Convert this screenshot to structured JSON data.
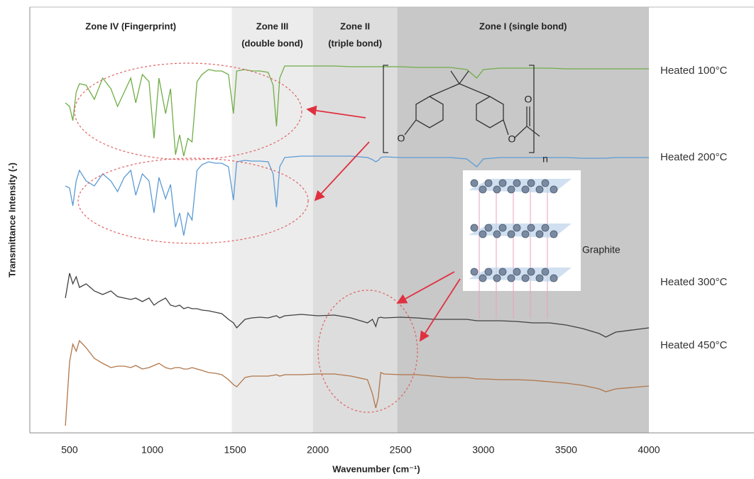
{
  "chart_data": {
    "type": "line",
    "xlabel": "Wavenumber (cm⁻¹)",
    "ylabel": "Transmittance Intensity (-)",
    "xlim": [
      260,
      4635
    ],
    "xticks": [
      500,
      1000,
      1500,
      2000,
      2500,
      3000,
      3500,
      4000
    ],
    "ylim": [
      0,
      600
    ],
    "zones": [
      {
        "label": [
          "Zone IV (Fingerprint)"
        ],
        "start": 260,
        "end": 1480,
        "color": "#ffffff"
      },
      {
        "label": [
          "Zone III",
          "(double bond)"
        ],
        "start": 1480,
        "end": 1970,
        "color": "#ececec"
      },
      {
        "label": [
          "Zone II",
          "(triple bond)"
        ],
        "start": 1970,
        "end": 2480,
        "color": "#dddddd"
      },
      {
        "label": [
          "Zone I (single bond)"
        ],
        "start": 2480,
        "end": 4000,
        "color": "#c8c8c8"
      }
    ],
    "annotations": {
      "graphite": "Graphite",
      "oxygen": "O",
      "repeat": "n"
    },
    "x": [
      475,
      500,
      520,
      540,
      560,
      600,
      650,
      700,
      750,
      790,
      830,
      870,
      900,
      940,
      980,
      1010,
      1040,
      1080,
      1110,
      1140,
      1165,
      1190,
      1215,
      1240,
      1270,
      1300,
      1340,
      1380,
      1420,
      1460,
      1490,
      1510,
      1560,
      1600,
      1650,
      1700,
      1730,
      1750,
      1770,
      1800,
      1900,
      2000,
      2100,
      2200,
      2300,
      2330,
      2350,
      2365,
      2380,
      2400,
      2500,
      2600,
      2700,
      2800,
      2900,
      2960,
      3000,
      3100,
      3200,
      3300,
      3400,
      3500,
      3600,
      3700,
      3740,
      3800,
      3900,
      4000
    ],
    "series": [
      {
        "name": "Heated 100°C",
        "color": "#70ad47",
        "values": [
          465,
          460,
          440,
          480,
          492,
          490,
          470,
          500,
          485,
          460,
          480,
          500,
          465,
          505,
          495,
          415,
          500,
          450,
          485,
          392,
          420,
          390,
          415,
          410,
          495,
          505,
          512,
          510,
          510,
          505,
          450,
          510,
          512,
          510,
          510,
          508,
          490,
          432,
          500,
          517,
          517,
          517,
          517,
          516,
          516,
          516,
          516,
          516,
          516,
          516,
          516,
          515,
          515,
          515,
          512,
          500,
          512,
          514,
          514,
          514,
          514,
          513,
          513,
          513,
          513,
          513,
          513,
          513
        ]
      },
      {
        "name": "Heated 200°C",
        "color": "#5b9bd5",
        "values": [
          348,
          345,
          320,
          355,
          370,
          355,
          348,
          365,
          355,
          340,
          360,
          370,
          335,
          365,
          355,
          310,
          360,
          330,
          350,
          290,
          310,
          278,
          310,
          300,
          370,
          378,
          382,
          380,
          380,
          375,
          328,
          382,
          384,
          383,
          383,
          382,
          365,
          318,
          375,
          388,
          390,
          390,
          390,
          390,
          388,
          385,
          382,
          384,
          388,
          389,
          388,
          388,
          388,
          388,
          386,
          375,
          386,
          388,
          388,
          388,
          388,
          388,
          387,
          387,
          387,
          388,
          388,
          388
        ]
      },
      {
        "name": "Heated 300°C",
        "color": "#404040",
        "values": [
          190,
          225,
          210,
          220,
          205,
          210,
          200,
          195,
          200,
          192,
          190,
          188,
          190,
          185,
          190,
          180,
          185,
          190,
          180,
          178,
          180,
          175,
          177,
          175,
          175,
          173,
          172,
          170,
          168,
          160,
          155,
          148,
          160,
          162,
          163,
          162,
          164,
          165,
          162,
          165,
          167,
          165,
          166,
          162,
          155,
          160,
          150,
          162,
          163,
          162,
          163,
          162,
          160,
          160,
          160,
          158,
          158,
          158,
          157,
          155,
          155,
          152,
          147,
          140,
          135,
          142,
          145,
          148
        ]
      },
      {
        "name": "Heated 450°C",
        "color": "#b0764a",
        "values": [
          10,
          100,
          125,
          115,
          130,
          120,
          105,
          98,
          92,
          94,
          94,
          92,
          95,
          90,
          92,
          95,
          98,
          92,
          90,
          92,
          92,
          90,
          90,
          92,
          90,
          88,
          85,
          84,
          82,
          75,
          68,
          65,
          78,
          80,
          80,
          80,
          81,
          82,
          80,
          82,
          82,
          83,
          83,
          80,
          75,
          55,
          35,
          50,
          85,
          83,
          82,
          82,
          80,
          78,
          78,
          76,
          76,
          75,
          75,
          74,
          72,
          70,
          67,
          62,
          58,
          62,
          64,
          66
        ]
      }
    ]
  }
}
